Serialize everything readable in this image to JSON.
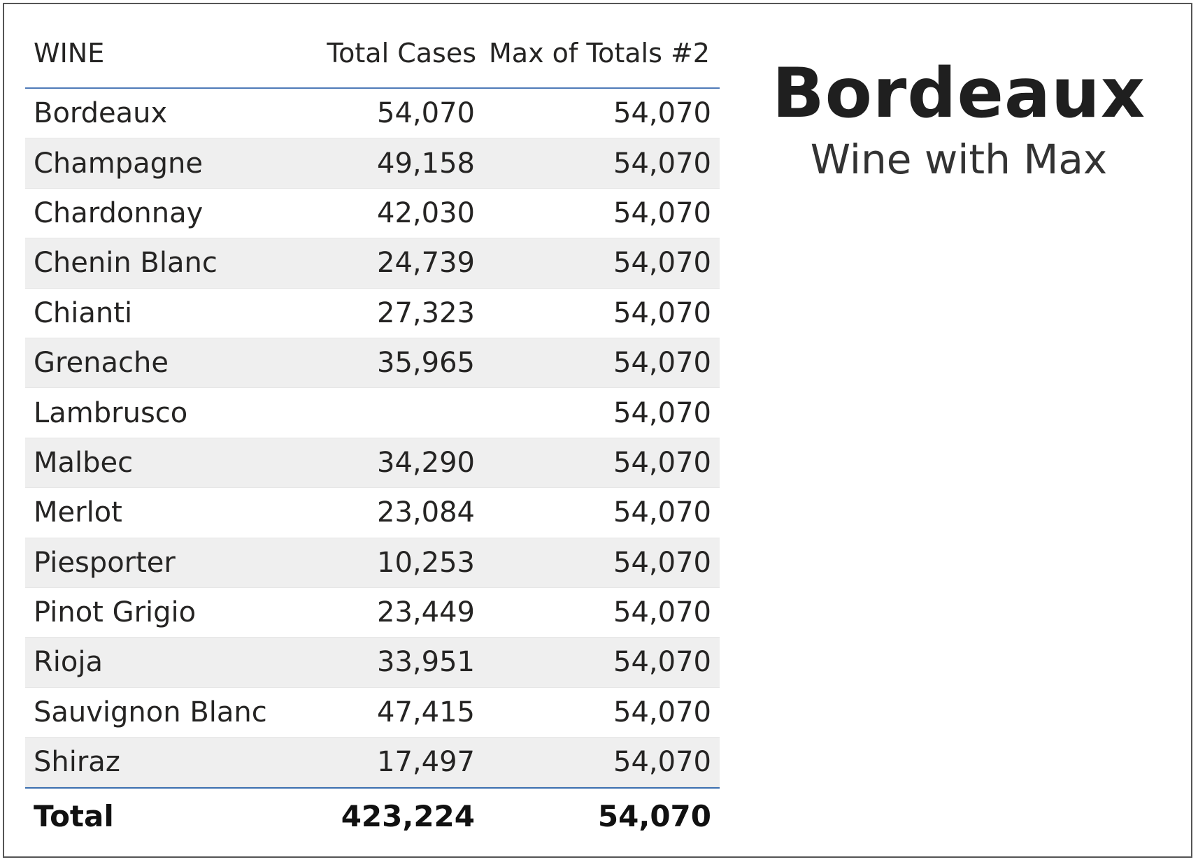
{
  "table": {
    "headers": {
      "wine": "WINE",
      "total_cases": "Total Cases",
      "max_of_totals": "Max of Totals #2"
    },
    "rows": [
      {
        "wine": "Bordeaux",
        "total_cases": "54,070",
        "max_of_totals": "54,070"
      },
      {
        "wine": "Champagne",
        "total_cases": "49,158",
        "max_of_totals": "54,070"
      },
      {
        "wine": "Chardonnay",
        "total_cases": "42,030",
        "max_of_totals": "54,070"
      },
      {
        "wine": "Chenin Blanc",
        "total_cases": "24,739",
        "max_of_totals": "54,070"
      },
      {
        "wine": "Chianti",
        "total_cases": "27,323",
        "max_of_totals": "54,070"
      },
      {
        "wine": "Grenache",
        "total_cases": "35,965",
        "max_of_totals": "54,070"
      },
      {
        "wine": "Lambrusco",
        "total_cases": "",
        "max_of_totals": "54,070"
      },
      {
        "wine": "Malbec",
        "total_cases": "34,290",
        "max_of_totals": "54,070"
      },
      {
        "wine": "Merlot",
        "total_cases": "23,084",
        "max_of_totals": "54,070"
      },
      {
        "wine": "Piesporter",
        "total_cases": "10,253",
        "max_of_totals": "54,070"
      },
      {
        "wine": "Pinot Grigio",
        "total_cases": "23,449",
        "max_of_totals": "54,070"
      },
      {
        "wine": "Rioja",
        "total_cases": "33,951",
        "max_of_totals": "54,070"
      },
      {
        "wine": "Sauvignon Blanc",
        "total_cases": "47,415",
        "max_of_totals": "54,070"
      },
      {
        "wine": "Shiraz",
        "total_cases": "17,497",
        "max_of_totals": "54,070"
      }
    ],
    "total": {
      "label": "Total",
      "total_cases": "423,224",
      "max_of_totals": "54,070"
    }
  },
  "card": {
    "value": "Bordeaux",
    "label": "Wine with Max"
  },
  "colors": {
    "header_rule": "#4f7ab8",
    "total_rule": "#3b6fb0",
    "alt_row": "#efefef",
    "frame_border": "#555555"
  }
}
